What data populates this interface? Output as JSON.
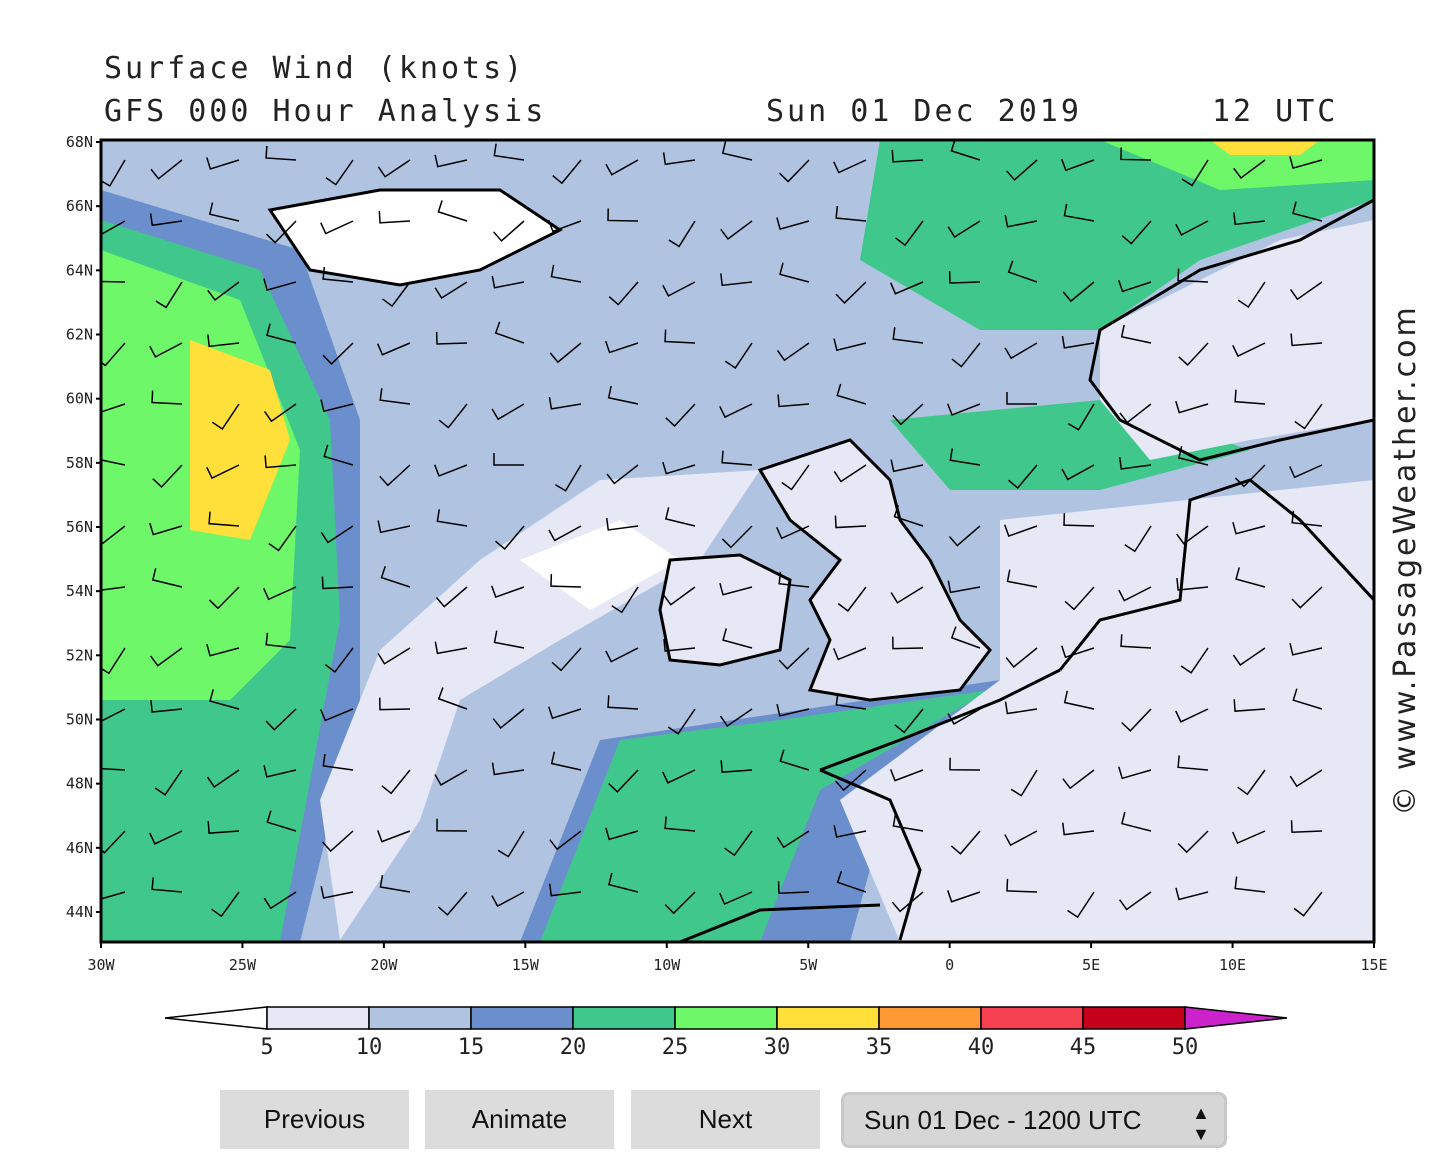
{
  "header": {
    "title": "Surface Wind (knots)",
    "subtitle": "GFS 000 Hour Analysis",
    "date": "Sun 01 Dec 2019",
    "time": "12 UTC"
  },
  "map": {
    "lat_labels": [
      "68N",
      "66N",
      "64N",
      "62N",
      "60N",
      "58N",
      "56N",
      "54N",
      "52N",
      "50N",
      "48N",
      "46N",
      "44N"
    ],
    "lon_labels": [
      "30W",
      "25W",
      "20W",
      "15W",
      "10W",
      "5W",
      "0",
      "5E",
      "10E",
      "15E"
    ],
    "credit": "© www.PassageWeather.com"
  },
  "legend": {
    "labels": [
      "5",
      "10",
      "15",
      "20",
      "25",
      "30",
      "35",
      "40",
      "45",
      "50"
    ],
    "colors": [
      "#ffffff",
      "#e6e9f5",
      "#b0c4e2",
      "#6b8fcc",
      "#40c88c",
      "#6ff76a",
      "#ffe03a",
      "#ff9933",
      "#f44050",
      "#c4001a",
      "#cc22cc"
    ]
  },
  "controls": {
    "buttons": [
      "Previous",
      "Animate",
      "Next"
    ],
    "select": "Sun 01 Dec - 1200 UTC"
  }
}
